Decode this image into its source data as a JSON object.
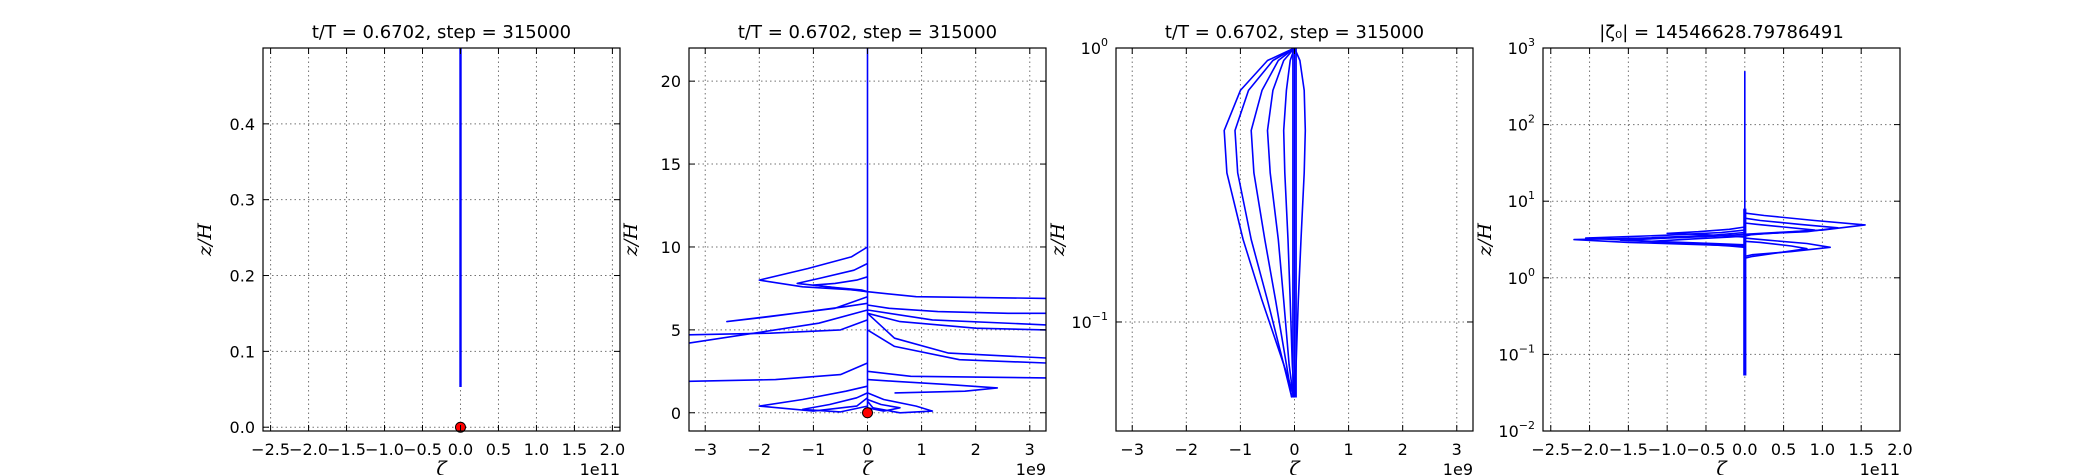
{
  "figure": {
    "background": "#ffffff",
    "line_color": "#0000ff",
    "marker_color": "#ff0000"
  },
  "chart_data": [
    {
      "type": "line",
      "title": "t/T = 0.6702, step = 315000",
      "xlabel": "ζ",
      "ylabel": "z/H",
      "x_offset_label": "1e11",
      "xlim": [
        -2.6,
        2.1
      ],
      "ylim": [
        -0.005,
        0.5
      ],
      "yscale": "linear",
      "grid": true,
      "xticks": [
        -2.5,
        -2.0,
        -1.5,
        -1.0,
        -0.5,
        0.0,
        0.5,
        1.0,
        1.5,
        2.0
      ],
      "xtick_labels": [
        "−2.5",
        "−2.0",
        "−1.5",
        "−1.0",
        "−0.5",
        "0.0",
        "0.5",
        "1.0",
        "1.5",
        "2.0"
      ],
      "yticks": [
        0.0,
        0.1,
        0.2,
        0.3,
        0.4
      ],
      "ytick_labels": [
        "0.0",
        "0.1",
        "0.2",
        "0.3",
        "0.4"
      ],
      "markers": [
        {
          "x": 0.0,
          "y": 0.0
        }
      ],
      "series": [
        {
          "x": [
            0,
            0
          ],
          "y": [
            0.053,
            0.5
          ]
        },
        {
          "x": [
            0.005,
            0.005
          ],
          "y": [
            0.053,
            0.5
          ]
        },
        {
          "x": [
            -0.005,
            -0.005
          ],
          "y": [
            0.053,
            0.5
          ]
        }
      ]
    },
    {
      "type": "line",
      "title": "t/T = 0.6702, step = 315000",
      "xlabel": "ζ",
      "ylabel": "z/H",
      "x_offset_label": "1e9",
      "xlim": [
        -3.3,
        3.3
      ],
      "ylim": [
        -1.1,
        22.0
      ],
      "yscale": "linear",
      "grid": true,
      "xticks": [
        -3,
        -2,
        -1,
        0,
        1,
        2,
        3
      ],
      "xtick_labels": [
        "−3",
        "−2",
        "−1",
        "0",
        "1",
        "2",
        "3"
      ],
      "yticks": [
        0,
        5,
        10,
        15,
        20
      ],
      "ytick_labels": [
        "0",
        "5",
        "10",
        "15",
        "20"
      ],
      "markers": [
        {
          "x": 0.0,
          "y": 0.0
        }
      ],
      "series": [
        {
          "x": [
            0,
            0
          ],
          "y": [
            0.05,
            22.0
          ]
        },
        {
          "x": [
            0,
            -0.3,
            -1.1,
            -2.0,
            -1.2,
            -0.2,
            0
          ],
          "y": [
            10.0,
            9.4,
            8.7,
            8.0,
            7.6,
            7.4,
            7.3
          ]
        },
        {
          "x": [
            0,
            -0.25,
            -0.9,
            -1.3,
            -0.6,
            -0.1,
            0
          ],
          "y": [
            9.0,
            8.6,
            8.1,
            7.8,
            7.55,
            7.4,
            7.3
          ]
        },
        {
          "x": [
            0,
            -0.2,
            -0.6,
            -1.0,
            -0.5,
            0
          ],
          "y": [
            8.2,
            8.0,
            7.8,
            7.7,
            7.5,
            7.3
          ]
        },
        {
          "x": [
            0,
            -0.6,
            -2.6,
            -1.8,
            -0.4,
            0
          ],
          "y": [
            7.0,
            6.3,
            5.5,
            5.8,
            6.4,
            6.6
          ]
        },
        {
          "x": [
            0,
            -0.9,
            -3.3
          ],
          "y": [
            6.2,
            5.4,
            4.2
          ]
        },
        {
          "x": [
            0,
            -0.5,
            -1.8,
            -3.3
          ],
          "y": [
            5.6,
            5.0,
            4.8,
            4.7
          ]
        },
        {
          "x": [
            0,
            0.9,
            3.3
          ],
          "y": [
            7.3,
            7.0,
            6.9
          ]
        },
        {
          "x": [
            0,
            0.4,
            1.3,
            2.6,
            3.3
          ],
          "y": [
            6.5,
            6.3,
            6.1,
            6.0,
            6.0
          ]
        },
        {
          "x": [
            0,
            1.2,
            3.3
          ],
          "y": [
            6.2,
            5.6,
            5.3
          ]
        },
        {
          "x": [
            0,
            0.6,
            2.0,
            3.3
          ],
          "y": [
            6.0,
            5.5,
            5.1,
            5.0
          ]
        },
        {
          "x": [
            0,
            0.5,
            1.7,
            3.3
          ],
          "y": [
            5.0,
            4.0,
            3.2,
            3.0
          ]
        },
        {
          "x": [
            0,
            0.5,
            1.5,
            3.3
          ],
          "y": [
            6.0,
            4.5,
            3.6,
            3.3
          ]
        },
        {
          "x": [
            0,
            -0.5,
            -1.7,
            -3.3
          ],
          "y": [
            3.0,
            2.3,
            2.0,
            1.9
          ]
        },
        {
          "x": [
            0,
            0.8,
            3.3
          ],
          "y": [
            2.5,
            2.2,
            2.1
          ]
        },
        {
          "x": [
            0,
            0.5,
            1.5,
            2.4,
            1.8,
            0.5
          ],
          "y": [
            2.0,
            1.9,
            1.7,
            1.5,
            1.3,
            1.2
          ]
        },
        {
          "x": [
            0,
            -0.4,
            -1.2,
            -2.0,
            -1.0,
            -0.2,
            0
          ],
          "y": [
            1.6,
            1.3,
            0.8,
            0.4,
            0.1,
            0.4,
            0.9
          ]
        },
        {
          "x": [
            0,
            -0.2,
            -0.7,
            -1.2,
            -0.5,
            0
          ],
          "y": [
            1.2,
            0.9,
            0.5,
            0.2,
            0.05,
            0.4
          ]
        },
        {
          "x": [
            0,
            0.3,
            0.9,
            1.2,
            0.6,
            0.1,
            0
          ],
          "y": [
            1.2,
            0.8,
            0.4,
            0.1,
            0.0,
            0.3,
            0.7
          ]
        },
        {
          "x": [
            0,
            0.25,
            0.6,
            0.3,
            0
          ],
          "y": [
            0.8,
            0.5,
            0.3,
            0.1,
            0.3
          ]
        }
      ]
    },
    {
      "type": "line",
      "title": "t/T = 0.6702, step = 315000",
      "xlabel": "ζ",
      "ylabel": "z/H",
      "x_offset_label": "1e9",
      "xlim": [
        -3.3,
        3.3
      ],
      "ylim": [
        0.04,
        1.0
      ],
      "yscale": "log",
      "grid": true,
      "xticks": [
        -3,
        -2,
        -1,
        0,
        1,
        2,
        3
      ],
      "xtick_labels": [
        "−3",
        "−2",
        "−1",
        "0",
        "1",
        "2",
        "3"
      ],
      "yticks": [
        0.1,
        1.0
      ],
      "ytick_labels": [
        [
          "10",
          "−1"
        ],
        [
          "10",
          "0"
        ]
      ],
      "markers": [],
      "series": [
        {
          "x": [
            0,
            -0.5,
            -1.0,
            -1.3,
            -1.25,
            -0.95,
            -0.6,
            -0.2,
            0
          ],
          "y": [
            1.0,
            0.9,
            0.7,
            0.5,
            0.35,
            0.2,
            0.12,
            0.07,
            0.053
          ]
        },
        {
          "x": [
            0,
            -0.4,
            -0.85,
            -1.1,
            -1.05,
            -0.8,
            -0.5,
            -0.2,
            -0.05
          ],
          "y": [
            1.0,
            0.9,
            0.7,
            0.5,
            0.35,
            0.2,
            0.12,
            0.07,
            0.053
          ]
        },
        {
          "x": [
            0,
            -0.3,
            -0.6,
            -0.8,
            -0.75,
            -0.55,
            -0.35,
            -0.15,
            -0.05
          ],
          "y": [
            1.0,
            0.9,
            0.7,
            0.5,
            0.35,
            0.2,
            0.12,
            0.07,
            0.053
          ]
        },
        {
          "x": [
            0,
            -0.2,
            -0.4,
            -0.5,
            -0.45,
            -0.3,
            -0.2,
            -0.1,
            -0.02
          ],
          "y": [
            1.0,
            0.9,
            0.7,
            0.5,
            0.35,
            0.2,
            0.12,
            0.07,
            0.053
          ]
        },
        {
          "x": [
            0,
            -0.08,
            -0.15,
            -0.2,
            -0.18,
            -0.12,
            -0.08,
            -0.04,
            0
          ],
          "y": [
            1.0,
            0.9,
            0.7,
            0.5,
            0.35,
            0.2,
            0.12,
            0.07,
            0.053
          ]
        },
        {
          "x": [
            0,
            0.1,
            0.18,
            0.2,
            0.18,
            0.12,
            0.07,
            0.03,
            0
          ],
          "y": [
            1.0,
            0.9,
            0.7,
            0.5,
            0.35,
            0.2,
            0.12,
            0.07,
            0.053
          ]
        },
        {
          "x": [
            0,
            0,
            0,
            0
          ],
          "y": [
            1.0,
            0.5,
            0.1,
            0.053
          ]
        },
        {
          "x": [
            0.03,
            0.03,
            0.03,
            0.03
          ],
          "y": [
            1.0,
            0.5,
            0.1,
            0.053
          ]
        },
        {
          "x": [
            -0.03,
            -0.03,
            -0.03,
            -0.03
          ],
          "y": [
            1.0,
            0.5,
            0.1,
            0.053
          ]
        }
      ]
    },
    {
      "type": "line",
      "title": "|ζ₀| = 14546628.79786491",
      "xlabel": "ζ",
      "ylabel": "z/H",
      "x_offset_label": "1e11",
      "xlim": [
        -2.6,
        2.0
      ],
      "ylim": [
        0.01,
        1000.0
      ],
      "yscale": "log",
      "grid": true,
      "xticks": [
        -2.5,
        -2.0,
        -1.5,
        -1.0,
        -0.5,
        0.0,
        0.5,
        1.0,
        1.5,
        2.0
      ],
      "xtick_labels": [
        "−2.5",
        "−2.0",
        "−1.5",
        "−1.0",
        "−0.5",
        "0.0",
        "0.5",
        "1.0",
        "1.5",
        "2.0"
      ],
      "yticks": [
        0.01,
        0.1,
        1,
        10,
        100,
        1000
      ],
      "ytick_labels": [
        [
          "10",
          "−2"
        ],
        [
          "10",
          "−1"
        ],
        [
          "10",
          "0"
        ],
        [
          "10",
          "1"
        ],
        [
          "10",
          "2"
        ],
        [
          "10",
          "3"
        ]
      ],
      "markers": [],
      "series": [
        {
          "x": [
            0,
            0
          ],
          "y": [
            0.053,
            500.0
          ]
        },
        {
          "x": [
            0.01,
            0.01
          ],
          "y": [
            0.053,
            8.0
          ]
        },
        {
          "x": [
            -0.01,
            -0.01
          ],
          "y": [
            0.053,
            8.0
          ]
        },
        {
          "x": [
            0,
            0.25,
            0.9,
            1.55,
            1.0,
            0.4,
            0
          ],
          "y": [
            7.0,
            6.5,
            5.6,
            4.9,
            4.2,
            3.9,
            3.7
          ]
        },
        {
          "x": [
            0,
            0.2,
            0.7,
            1.2,
            0.8,
            0.3,
            0
          ],
          "y": [
            6.0,
            5.6,
            5.0,
            4.5,
            4.0,
            3.8,
            3.6
          ]
        },
        {
          "x": [
            0,
            0.15,
            0.5,
            0.9,
            0.5,
            0.1,
            0
          ],
          "y": [
            5.2,
            5.0,
            4.6,
            4.2,
            3.9,
            3.7,
            3.5
          ]
        },
        {
          "x": [
            0,
            -0.2,
            -0.6,
            -1.0,
            -0.6,
            -0.2,
            0
          ],
          "y": [
            4.6,
            4.3,
            4.0,
            3.8,
            3.7,
            3.5,
            3.4
          ]
        },
        {
          "x": [
            0,
            -0.3,
            -1.0,
            -2.05,
            -1.2,
            -0.4,
            0
          ],
          "y": [
            4.2,
            3.9,
            3.6,
            3.3,
            3.0,
            2.8,
            2.7
          ]
        },
        {
          "x": [
            0,
            -0.4,
            -1.3,
            -2.2,
            -1.5,
            -0.5,
            0
          ],
          "y": [
            3.9,
            3.6,
            3.3,
            3.15,
            2.9,
            2.7,
            2.6
          ]
        },
        {
          "x": [
            0,
            -0.35,
            -1.0,
            -1.6,
            -1.0,
            -0.3,
            0
          ],
          "y": [
            3.7,
            3.5,
            3.3,
            3.1,
            2.9,
            2.7,
            2.6
          ]
        },
        {
          "x": [
            0,
            -0.2,
            -0.7,
            -1.2,
            -0.7,
            -0.2,
            0
          ],
          "y": [
            3.5,
            3.4,
            3.2,
            3.0,
            2.8,
            2.6,
            2.5
          ]
        },
        {
          "x": [
            0,
            0.3,
            0.8,
            1.1,
            0.6,
            0.1,
            0
          ],
          "y": [
            3.3,
            3.1,
            2.8,
            2.5,
            2.2,
            2.0,
            1.9
          ]
        },
        {
          "x": [
            0,
            0.2,
            0.6,
            0.8,
            0.4,
            0.1,
            0
          ],
          "y": [
            3.0,
            2.9,
            2.6,
            2.4,
            2.1,
            1.9,
            1.8
          ]
        }
      ]
    }
  ]
}
